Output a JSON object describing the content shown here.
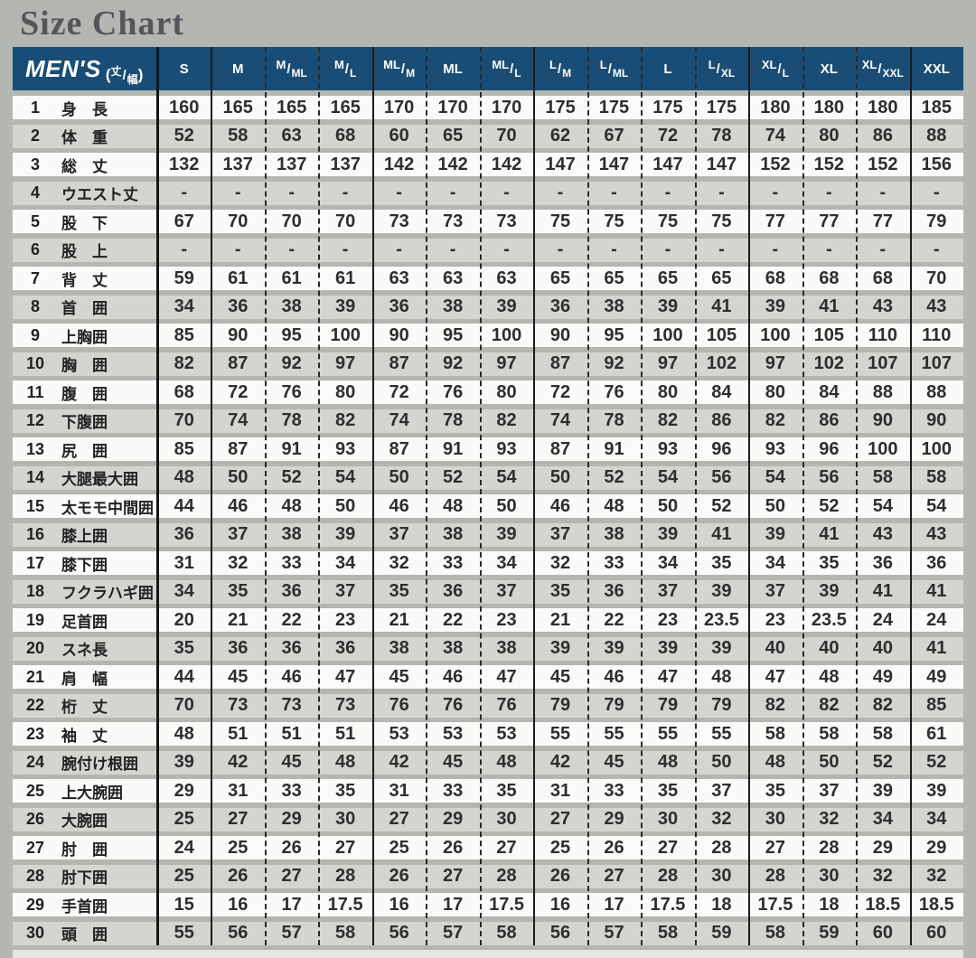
{
  "title": "Size Chart",
  "colors": {
    "page_bg": "#b4b6b2",
    "header_bg": "#1a4d75",
    "header_text": "#ffffff",
    "row_white": "#fafaf8",
    "row_gray": "#d3d5d1",
    "separator_line": "#1c1c1c",
    "value_text": "#2e2e2e",
    "title_text": "#54565a",
    "bottom_strip": "#e4e6e2"
  },
  "header": {
    "brand": "MEN'S",
    "paren_open": "(",
    "dim_top": "丈",
    "dim_bottom": "幅",
    "paren_close": ")",
    "sizes": [
      "S",
      "M",
      "M/ML",
      "M/L",
      "ML/M",
      "ML",
      "ML/L",
      "L/M",
      "L/ML",
      "L",
      "L/XL",
      "XL/L",
      "XL",
      "XL/XXL",
      "XXL"
    ]
  },
  "rows": [
    {
      "n": "1",
      "label": "身　長",
      "values": [
        160,
        165,
        165,
        165,
        170,
        170,
        170,
        175,
        175,
        175,
        175,
        180,
        180,
        180,
        185
      ]
    },
    {
      "n": "2",
      "label": "体　重",
      "values": [
        52,
        58,
        63,
        68,
        60,
        65,
        70,
        62,
        67,
        72,
        78,
        74,
        80,
        86,
        88
      ]
    },
    {
      "n": "3",
      "label": "総　丈",
      "values": [
        132,
        137,
        137,
        137,
        142,
        142,
        142,
        147,
        147,
        147,
        147,
        152,
        152,
        152,
        156
      ]
    },
    {
      "n": "4",
      "label": "ウエスト丈",
      "values": [
        "-",
        "-",
        "-",
        "-",
        "-",
        "-",
        "-",
        "-",
        "-",
        "-",
        "-",
        "-",
        "-",
        "-",
        "-"
      ]
    },
    {
      "n": "5",
      "label": "股　下",
      "values": [
        67,
        70,
        70,
        70,
        73,
        73,
        73,
        75,
        75,
        75,
        75,
        77,
        77,
        77,
        79
      ]
    },
    {
      "n": "6",
      "label": "股　上",
      "values": [
        "-",
        "-",
        "-",
        "-",
        "-",
        "-",
        "-",
        "-",
        "-",
        "-",
        "-",
        "-",
        "-",
        "-",
        "-"
      ]
    },
    {
      "n": "7",
      "label": "背　丈",
      "values": [
        59,
        61,
        61,
        61,
        63,
        63,
        63,
        65,
        65,
        65,
        65,
        68,
        68,
        68,
        70
      ]
    },
    {
      "n": "8",
      "label": "首　囲",
      "values": [
        34,
        36,
        38,
        39,
        36,
        38,
        39,
        36,
        38,
        39,
        41,
        39,
        41,
        43,
        43
      ]
    },
    {
      "n": "9",
      "label": "上胸囲",
      "values": [
        85,
        90,
        95,
        100,
        90,
        95,
        100,
        90,
        95,
        100,
        105,
        100,
        105,
        110,
        110
      ]
    },
    {
      "n": "10",
      "label": "胸　囲",
      "values": [
        82,
        87,
        92,
        97,
        87,
        92,
        97,
        87,
        92,
        97,
        102,
        97,
        102,
        107,
        107
      ]
    },
    {
      "n": "11",
      "label": "腹　囲",
      "values": [
        68,
        72,
        76,
        80,
        72,
        76,
        80,
        72,
        76,
        80,
        84,
        80,
        84,
        88,
        88
      ]
    },
    {
      "n": "12",
      "label": "下腹囲",
      "values": [
        70,
        74,
        78,
        82,
        74,
        78,
        82,
        74,
        78,
        82,
        86,
        82,
        86,
        90,
        90
      ]
    },
    {
      "n": "13",
      "label": "尻　囲",
      "values": [
        85,
        87,
        91,
        93,
        87,
        91,
        93,
        87,
        91,
        93,
        96,
        93,
        96,
        100,
        100
      ]
    },
    {
      "n": "14",
      "label": "大腿最大囲",
      "values": [
        48,
        50,
        52,
        54,
        50,
        52,
        54,
        50,
        52,
        54,
        56,
        54,
        56,
        58,
        58
      ]
    },
    {
      "n": "15",
      "label": "太モモ中間囲",
      "values": [
        44,
        46,
        48,
        50,
        46,
        48,
        50,
        46,
        48,
        50,
        52,
        50,
        52,
        54,
        54
      ]
    },
    {
      "n": "16",
      "label": "膝上囲",
      "values": [
        36,
        37,
        38,
        39,
        37,
        38,
        39,
        37,
        38,
        39,
        41,
        39,
        41,
        43,
        43
      ]
    },
    {
      "n": "17",
      "label": "膝下囲",
      "values": [
        31,
        32,
        33,
        34,
        32,
        33,
        34,
        32,
        33,
        34,
        35,
        34,
        35,
        36,
        36
      ]
    },
    {
      "n": "18",
      "label": "フクラハギ囲",
      "values": [
        34,
        35,
        36,
        37,
        35,
        36,
        37,
        35,
        36,
        37,
        39,
        37,
        39,
        41,
        41
      ]
    },
    {
      "n": "19",
      "label": "足首囲",
      "values": [
        20,
        21,
        22,
        23,
        21,
        22,
        23,
        21,
        22,
        23,
        23.5,
        23,
        23.5,
        24,
        24
      ]
    },
    {
      "n": "20",
      "label": "スネ長",
      "values": [
        35,
        36,
        36,
        36,
        38,
        38,
        38,
        39,
        39,
        39,
        39,
        40,
        40,
        40,
        41
      ]
    },
    {
      "n": "21",
      "label": "肩　幅",
      "values": [
        44,
        45,
        46,
        47,
        45,
        46,
        47,
        45,
        46,
        47,
        48,
        47,
        48,
        49,
        49
      ]
    },
    {
      "n": "22",
      "label": "桁　丈",
      "values": [
        70,
        73,
        73,
        73,
        76,
        76,
        76,
        79,
        79,
        79,
        79,
        82,
        82,
        82,
        85
      ]
    },
    {
      "n": "23",
      "label": "袖　丈",
      "values": [
        48,
        51,
        51,
        51,
        53,
        53,
        53,
        55,
        55,
        55,
        55,
        58,
        58,
        58,
        61
      ]
    },
    {
      "n": "24",
      "label": "腕付け根囲",
      "values": [
        39,
        42,
        45,
        48,
        42,
        45,
        48,
        42,
        45,
        48,
        50,
        48,
        50,
        52,
        52
      ]
    },
    {
      "n": "25",
      "label": "上大腕囲",
      "values": [
        29,
        31,
        33,
        35,
        31,
        33,
        35,
        31,
        33,
        35,
        37,
        35,
        37,
        39,
        39
      ]
    },
    {
      "n": "26",
      "label": "大腕囲",
      "values": [
        25,
        27,
        29,
        30,
        27,
        29,
        30,
        27,
        29,
        30,
        32,
        30,
        32,
        34,
        34
      ]
    },
    {
      "n": "27",
      "label": "肘　囲",
      "values": [
        24,
        25,
        26,
        27,
        25,
        26,
        27,
        25,
        26,
        27,
        28,
        27,
        28,
        29,
        29
      ]
    },
    {
      "n": "28",
      "label": "肘下囲",
      "values": [
        25,
        26,
        27,
        28,
        26,
        27,
        28,
        26,
        27,
        28,
        30,
        28,
        30,
        32,
        32
      ]
    },
    {
      "n": "29",
      "label": "手首囲",
      "values": [
        15,
        16,
        17,
        17.5,
        16,
        17,
        17.5,
        16,
        17,
        17.5,
        18,
        17.5,
        18,
        18.5,
        18.5
      ]
    },
    {
      "n": "30",
      "label": "頭　囲",
      "values": [
        55,
        56,
        57,
        58,
        56,
        57,
        58,
        56,
        57,
        58,
        59,
        58,
        59,
        60,
        60
      ]
    }
  ]
}
